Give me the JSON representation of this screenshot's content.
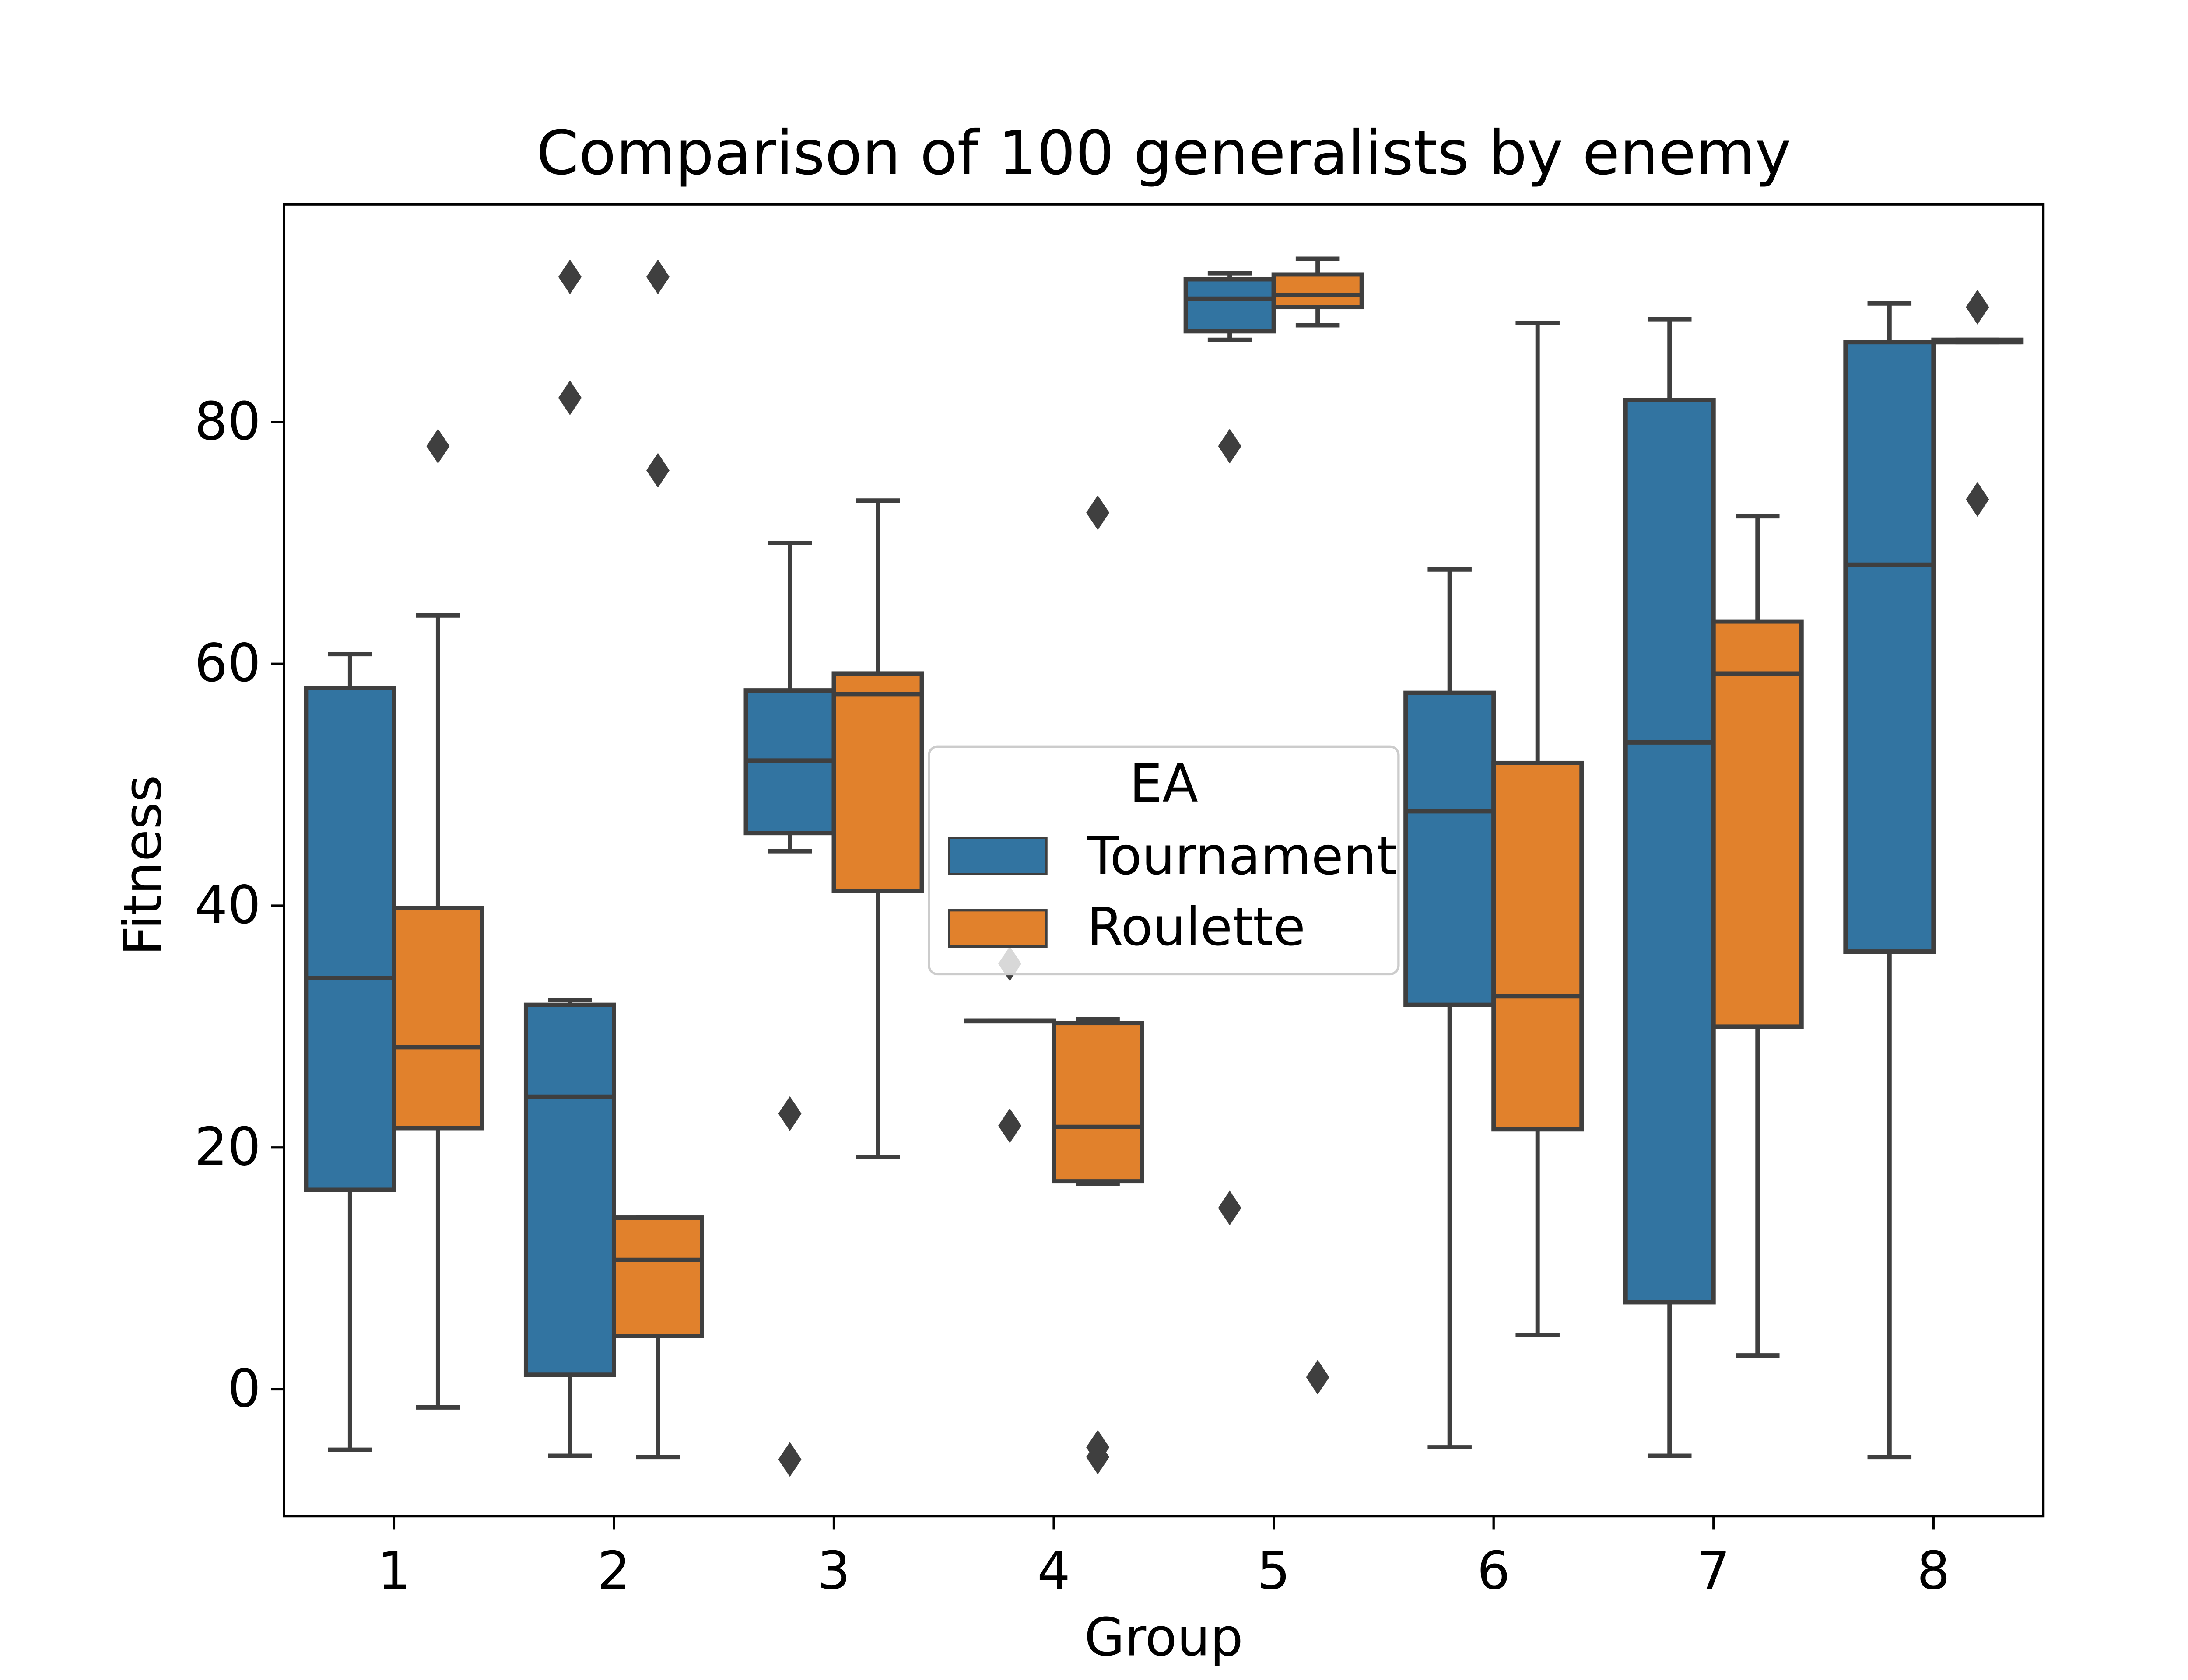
{
  "chart_data": {
    "type": "box",
    "title": "Comparison of 100 generalists by enemy",
    "xlabel": "Group",
    "ylabel": "Fitness",
    "categories": [
      "1",
      "2",
      "3",
      "4",
      "5",
      "6",
      "7",
      "8"
    ],
    "ylim": [
      -10.5,
      98
    ],
    "yticks": [
      0,
      20,
      40,
      60,
      80
    ],
    "grid": false,
    "legend": {
      "title": "EA",
      "placement": "center"
    },
    "colors": {
      "Tournament": "#3274a1",
      "Roulette": "#e1812c",
      "edge": "#3f3f3f"
    },
    "series": [
      {
        "name": "Tournament",
        "boxes": [
          {
            "whislo": -5,
            "q1": 16.5,
            "med": 34,
            "q3": 58,
            "whishi": 60.8,
            "fliers": []
          },
          {
            "whislo": -5.5,
            "q1": 1.2,
            "med": 24.2,
            "q3": 31.8,
            "whishi": 32.2,
            "fliers": [
              82,
              92
            ]
          },
          {
            "whislo": 44.5,
            "q1": 46,
            "med": 52,
            "q3": 57.8,
            "whishi": 70,
            "fliers": [
              22.8,
              -5.8
            ]
          },
          {
            "whislo": 30.5,
            "q1": 30.5,
            "med": 30.5,
            "q3": 30.5,
            "whishi": 30.5,
            "fliers": [
              35.2,
              21.8
            ]
          },
          {
            "whislo": 86.8,
            "q1": 87.5,
            "med": 90.2,
            "q3": 91.8,
            "whishi": 92.3,
            "fliers": [
              78,
              15
            ]
          },
          {
            "whislo": -4.8,
            "q1": 31.8,
            "med": 47.8,
            "q3": 57.6,
            "whishi": 67.8,
            "fliers": []
          },
          {
            "whislo": -5.5,
            "q1": 7.2,
            "med": 53.5,
            "q3": 81.8,
            "whishi": 88.5,
            "fliers": []
          },
          {
            "whislo": -5.6,
            "q1": 36.2,
            "med": 68.2,
            "q3": 86.6,
            "whishi": 89.8,
            "fliers": []
          }
        ]
      },
      {
        "name": "Roulette",
        "boxes": [
          {
            "whislo": -1.5,
            "q1": 21.6,
            "med": 28.3,
            "q3": 39.8,
            "whishi": 64,
            "fliers": [
              78
            ]
          },
          {
            "whislo": -5.6,
            "q1": 4.4,
            "med": 10.7,
            "q3": 14.2,
            "whishi": 14.2,
            "fliers": [
              76,
              92
            ]
          },
          {
            "whislo": 19.2,
            "q1": 41.2,
            "med": 57.5,
            "q3": 59.2,
            "whishi": 73.5,
            "fliers": []
          },
          {
            "whislo": 17,
            "q1": 17.2,
            "med": 21.7,
            "q3": 30.3,
            "whishi": 30.6,
            "fliers": [
              72.5,
              -5.6,
              -4.8
            ]
          },
          {
            "whislo": 88,
            "q1": 89.5,
            "med": 90.5,
            "q3": 92.2,
            "whishi": 93.5,
            "fliers": [
              1
            ]
          },
          {
            "whislo": 4.5,
            "q1": 21.5,
            "med": 32.5,
            "q3": 51.8,
            "whishi": 88.2,
            "fliers": []
          },
          {
            "whislo": 2.8,
            "q1": 30,
            "med": 59.2,
            "q3": 63.5,
            "whishi": 72.2,
            "fliers": []
          },
          {
            "whislo": 86.6,
            "q1": 86.6,
            "med": 86.6,
            "q3": 86.8,
            "whishi": 86.8,
            "fliers": [
              89.5,
              73.6
            ]
          }
        ]
      }
    ]
  }
}
